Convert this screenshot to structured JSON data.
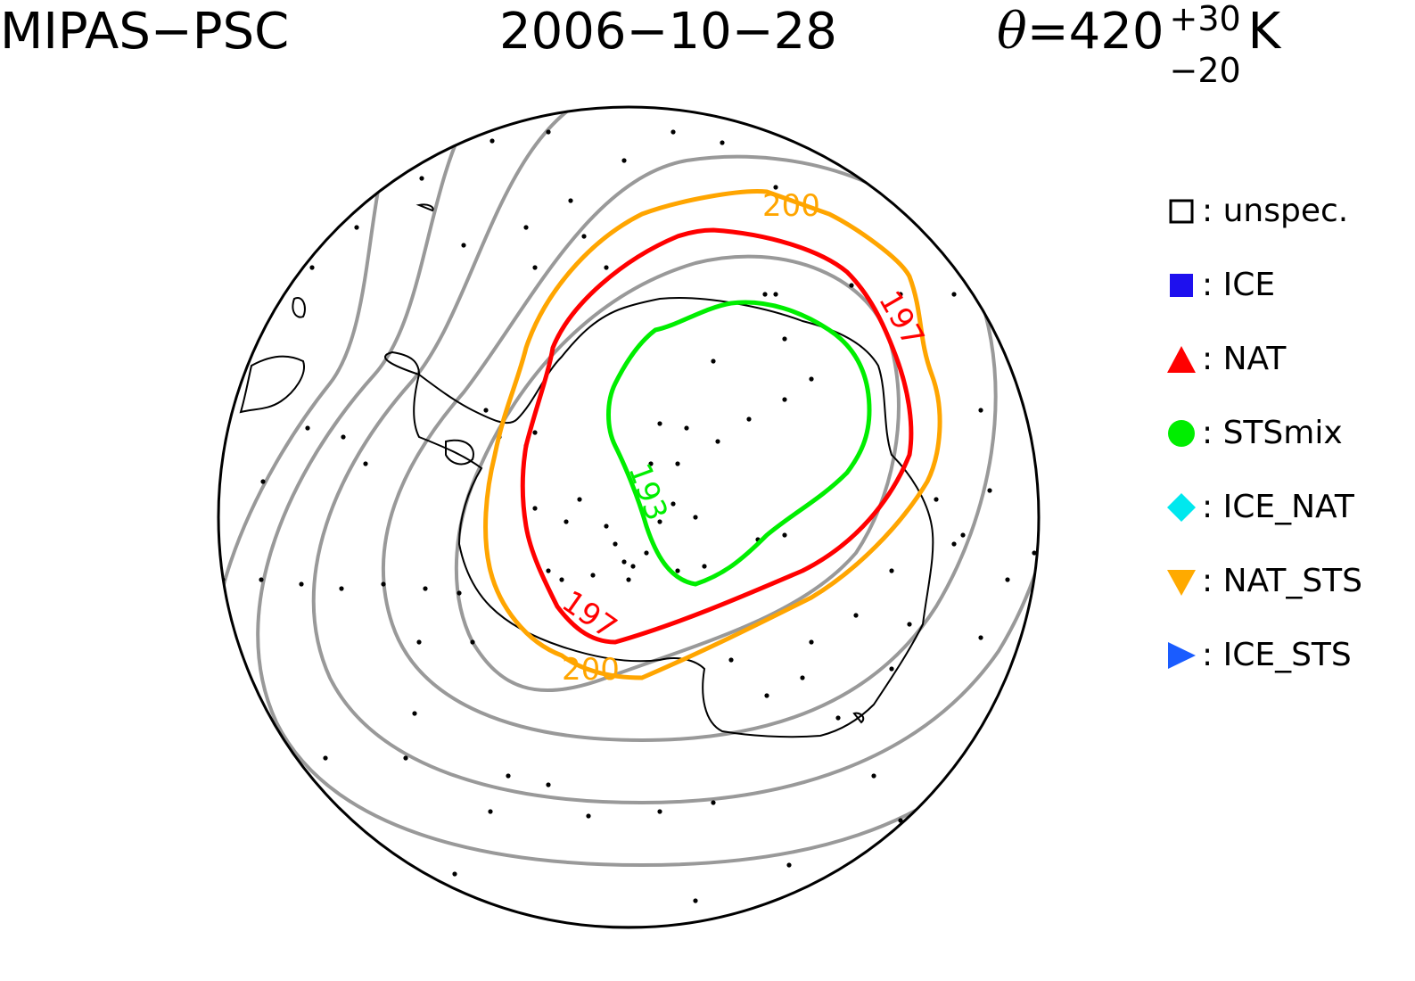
{
  "title": {
    "instrument": "MIPAS−PSC",
    "date": "2006−10−28",
    "theta_symbol": "θ",
    "theta_eq": "=420",
    "theta_sup": "+30",
    "theta_sub": "−20",
    "theta_unit": "K"
  },
  "legend": [
    {
      "label": ": unspec.",
      "symbol": "open-square",
      "color": "#000000"
    },
    {
      "label": ": ICE",
      "symbol": "filled-square",
      "color": "#1e10ee"
    },
    {
      "label": ": NAT",
      "symbol": "triangle-up",
      "color": "#ff0000"
    },
    {
      "label": ": STSmix",
      "symbol": "circle",
      "color": "#00ee00"
    },
    {
      "label": ": ICE_NAT",
      "symbol": "diamond",
      "color": "#00e8ee"
    },
    {
      "label": ": NAT_STS",
      "symbol": "triangle-down",
      "color": "#ffaa00"
    },
    {
      "label": ": ICE_STS",
      "symbol": "triangle-right",
      "color": "#1a5cff"
    }
  ],
  "contours": [
    {
      "value": "200",
      "color": "#ffa500"
    },
    {
      "value": "197",
      "color": "#ff0000"
    },
    {
      "value": "193",
      "color": "#00ee00"
    }
  ],
  "colors": {
    "background_contour": "#999999",
    "coastline": "#000000",
    "observation_dot": "#000000"
  }
}
